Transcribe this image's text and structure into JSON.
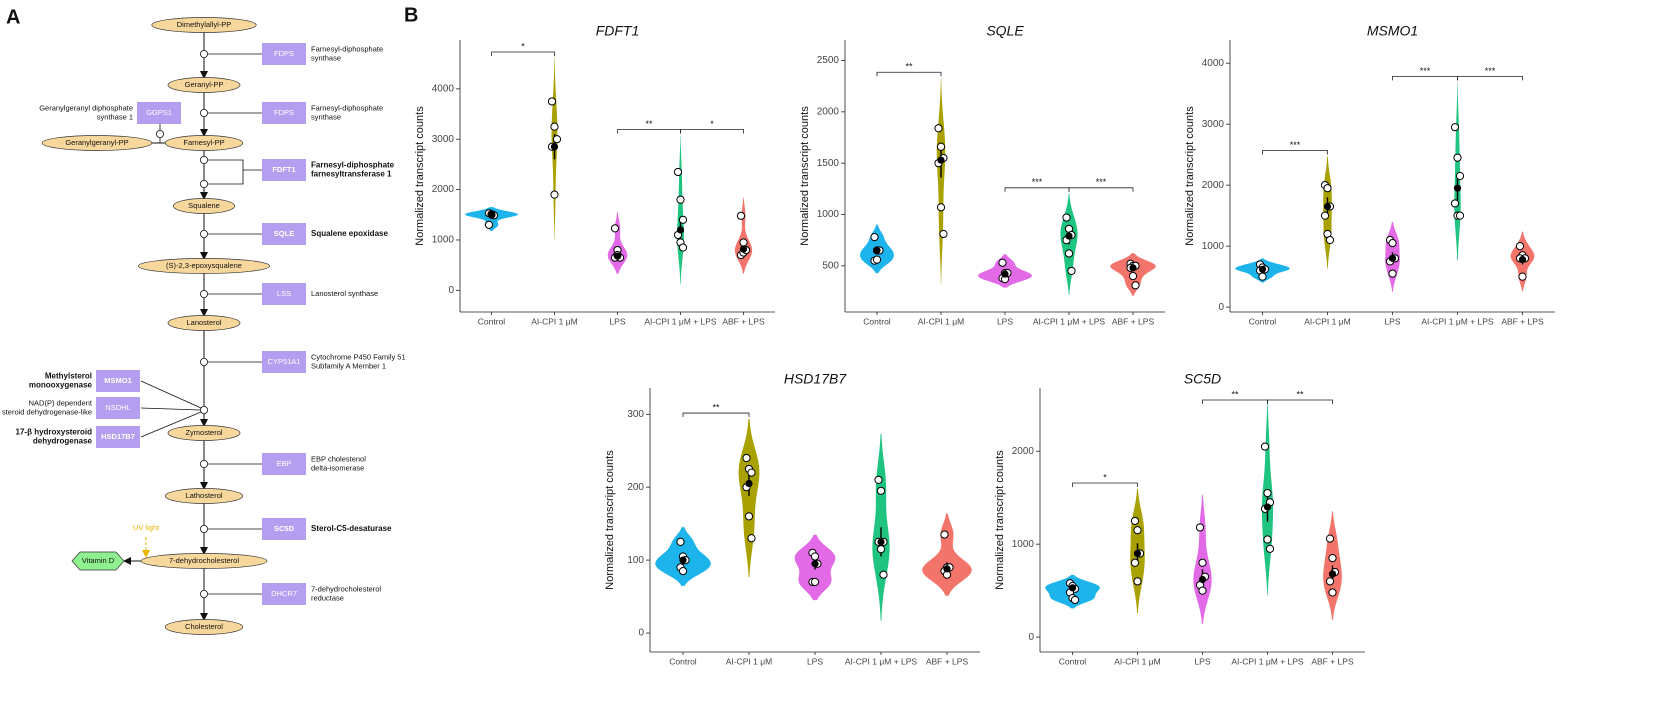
{
  "panel_labels": [
    "A",
    "B"
  ],
  "pathway": {
    "metabolites": [
      "Dimethylallyl-PP",
      "Geranyl-PP",
      "Farnesyl-PP",
      "Squalene",
      "(S)-2,3-epoxysqualene",
      "Lanosterol",
      "Zymosterol",
      "Lathosterol",
      "7-dehydrocholesterol",
      "Cholesterol"
    ],
    "side_products": [
      "Geranylgeranyl-PP",
      "Vitamin D"
    ],
    "uv_label": "UV light",
    "enzymes": [
      {
        "symbol": "FDPS",
        "description": [
          "Farnesyl-diphosphate",
          "synthase"
        ],
        "highlighted": false
      },
      {
        "symbol": "FDPS",
        "description": [
          "Farnesyl-diphosphate",
          "synthase"
        ],
        "highlighted": false
      },
      {
        "symbol": "GGPS1",
        "description": [
          "Geranylgeranyl diphosphate",
          "synthase 1"
        ],
        "highlighted": false
      },
      {
        "symbol": "FDFT1",
        "description": [
          "Farnesyl-diphosphate",
          "farnesyltransferase 1"
        ],
        "highlighted": true
      },
      {
        "symbol": "SQLE",
        "description": [
          "Squalene epoxidase"
        ],
        "highlighted": true
      },
      {
        "symbol": "LSS",
        "description": [
          "Lanosterol synthase"
        ],
        "highlighted": false
      },
      {
        "symbol": "CYP51A1",
        "description": [
          "Cytochrome P450 Family 51",
          "Subfamily A Member 1"
        ],
        "highlighted": false
      },
      {
        "symbol": "MSMO1",
        "description": [
          "Methylsterol",
          "monooxygenase"
        ],
        "highlighted": true
      },
      {
        "symbol": "NSDHL",
        "description": [
          "NAD(P) dependent",
          "steroid dehydrogenase-like"
        ],
        "highlighted": false
      },
      {
        "symbol": "HSD17B7",
        "description": [
          "17-β hydroxysteroid",
          "dehydrogenase"
        ],
        "highlighted": true
      },
      {
        "symbol": "EBP",
        "description": [
          "EBP cholestenol",
          "delta-isomerase"
        ],
        "highlighted": false
      },
      {
        "symbol": "SC5D",
        "description": [
          "Sterol-C5-desaturase"
        ],
        "highlighted": true
      },
      {
        "symbol": "DHCR7",
        "description": [
          "7-dehydrocholesterol",
          "reductase"
        ],
        "highlighted": false
      }
    ]
  },
  "chart_data": [
    {
      "type": "violin",
      "title": "FDFT1",
      "y_label": "Normalized transcript counts",
      "categories": [
        "Control",
        "AI-CPI 1 μM",
        "LPS",
        "AI-CPI 1 μM + LPS",
        "ABF + LPS"
      ],
      "groups": [
        {
          "color": "#1cb4ea",
          "values": [
            1530,
            1510,
            1490,
            1300,
            1500
          ],
          "mean": 1500,
          "error": 40
        },
        {
          "color": "#a9a100",
          "values": [
            3750,
            3250,
            3000,
            2850,
            1900
          ],
          "mean": 2850,
          "error": 250
        },
        {
          "color": "#e26ae6",
          "values": [
            1230,
            800,
            650,
            650,
            700
          ],
          "mean": 680,
          "error": 90
        },
        {
          "color": "#1ec47f",
          "values": [
            2350,
            1800,
            1400,
            1100,
            950,
            850
          ],
          "mean": 1200,
          "error": 250
        },
        {
          "color": "#f2746b",
          "values": [
            1480,
            950,
            800,
            700,
            750,
            800
          ],
          "mean": 820,
          "error": 110
        }
      ],
      "ylim": [
        -430,
        4970
      ],
      "yticks": [
        0,
        1000,
        2000,
        3000,
        4000
      ],
      "brackets": [
        {
          "from": 0,
          "to": 1,
          "label": "*"
        },
        {
          "from": 2,
          "to": 3,
          "label": "**"
        },
        {
          "from": 3,
          "to": 4,
          "label": "*"
        }
      ]
    },
    {
      "type": "violin",
      "title": "SQLE",
      "y_label": "Normalized transcript counts",
      "categories": [
        "Control",
        "AI-CPI 1 μM",
        "LPS",
        "AI-CPI 1 μM + LPS",
        "ABF + LPS"
      ],
      "groups": [
        {
          "color": "#1cb4ea",
          "values": [
            780,
            650,
            650,
            550,
            560
          ],
          "mean": 650,
          "error": 40
        },
        {
          "color": "#a9a100",
          "values": [
            1840,
            1660,
            1550,
            1500,
            1070,
            810
          ],
          "mean": 1530,
          "error": 170
        },
        {
          "color": "#e26ae6",
          "values": [
            530,
            430,
            430,
            380,
            370
          ],
          "mean": 420,
          "error": 25
        },
        {
          "color": "#1ec47f",
          "values": [
            970,
            860,
            800,
            750,
            620,
            450
          ],
          "mean": 790,
          "error": 80
        },
        {
          "color": "#f2746b",
          "values": [
            520,
            500,
            500,
            480,
            400,
            310
          ],
          "mean": 480,
          "error": 35
        }
      ],
      "ylim": [
        50,
        2700
      ],
      "yticks": [
        500,
        1000,
        1500,
        2000,
        2500
      ],
      "brackets": [
        {
          "from": 0,
          "to": 1,
          "label": "**"
        },
        {
          "from": 2,
          "to": 3,
          "label": "***"
        },
        {
          "from": 3,
          "to": 4,
          "label": "***"
        }
      ]
    },
    {
      "type": "violin",
      "title": "MSMO1",
      "y_label": "Normalized transcript counts",
      "categories": [
        "Control",
        "AI-CPI 1 μM",
        "LPS",
        "AI-CPI 1 μM + LPS",
        "ABF + LPS"
      ],
      "groups": [
        {
          "color": "#1cb4ea",
          "values": [
            700,
            650,
            620,
            600,
            500
          ],
          "mean": 620,
          "error": 30
        },
        {
          "color": "#a9a100",
          "values": [
            2000,
            1950,
            1650,
            1500,
            1200,
            1100
          ],
          "mean": 1650,
          "error": 150
        },
        {
          "color": "#e26ae6",
          "values": [
            1100,
            1050,
            800,
            750,
            550
          ],
          "mean": 800,
          "error": 100
        },
        {
          "color": "#1ec47f",
          "values": [
            2950,
            2450,
            2150,
            1700,
            1500,
            1500
          ],
          "mean": 1950,
          "error": 230
        },
        {
          "color": "#f2746b",
          "values": [
            1000,
            850,
            800,
            800,
            500
          ],
          "mean": 780,
          "error": 80
        }
      ],
      "ylim": [
        -80,
        4380
      ],
      "yticks": [
        0,
        1000,
        2000,
        3000,
        4000
      ],
      "brackets": [
        {
          "from": 0,
          "to": 1,
          "label": "***"
        },
        {
          "from": 2,
          "to": 3,
          "label": "***"
        },
        {
          "from": 3,
          "to": 4,
          "label": "***"
        }
      ]
    },
    {
      "type": "violin",
      "title": "HSD17B7",
      "y_label": "Normalized transcript counts",
      "categories": [
        "Control",
        "AI-CPI 1 μM",
        "LPS",
        "AI-CPI 1 μM + LPS",
        "ABF + LPS"
      ],
      "groups": [
        {
          "color": "#1cb4ea",
          "values": [
            125,
            105,
            100,
            90,
            85
          ],
          "mean": 100,
          "error": 7
        },
        {
          "color": "#a9a100",
          "values": [
            240,
            225,
            220,
            200,
            160,
            130
          ],
          "mean": 205,
          "error": 17
        },
        {
          "color": "#e26ae6",
          "values": [
            110,
            105,
            95,
            70,
            70
          ],
          "mean": 95,
          "error": 8
        },
        {
          "color": "#1ec47f",
          "values": [
            210,
            195,
            125,
            125,
            115,
            80
          ],
          "mean": 125,
          "error": 20
        },
        {
          "color": "#f2746b",
          "values": [
            135,
            90,
            90,
            85,
            80
          ],
          "mean": 88,
          "error": 9
        }
      ],
      "ylim": [
        -26,
        336
      ],
      "yticks": [
        0,
        100,
        200,
        300
      ],
      "brackets": [
        {
          "from": 0,
          "to": 1,
          "label": "**"
        }
      ]
    },
    {
      "type": "violin",
      "title": "SC5D",
      "y_label": "Normalized transcript counts",
      "categories": [
        "Control",
        "AI-CPI 1 μM",
        "LPS",
        "AI-CPI 1 μM + LPS",
        "ABF + LPS"
      ],
      "groups": [
        {
          "color": "#1cb4ea",
          "values": [
            580,
            550,
            520,
            480,
            420,
            400
          ],
          "mean": 530,
          "error": 30
        },
        {
          "color": "#a9a100",
          "values": [
            1250,
            1150,
            900,
            800,
            600
          ],
          "mean": 900,
          "error": 110
        },
        {
          "color": "#e26ae6",
          "values": [
            1180,
            800,
            650,
            560,
            500
          ],
          "mean": 620,
          "error": 110
        },
        {
          "color": "#1ec47f",
          "values": [
            2050,
            1550,
            1450,
            1380,
            1050,
            950
          ],
          "mean": 1400,
          "error": 160
        },
        {
          "color": "#f2746b",
          "values": [
            1060,
            850,
            700,
            600,
            480
          ],
          "mean": 680,
          "error": 90
        }
      ],
      "ylim": [
        -160,
        2680
      ],
      "yticks": [
        0,
        1000,
        2000
      ],
      "brackets": [
        {
          "from": 0,
          "to": 1,
          "label": "*"
        },
        {
          "from": 2,
          "to": 3,
          "label": "**"
        },
        {
          "from": 3,
          "to": 4,
          "label": "**"
        }
      ]
    }
  ]
}
